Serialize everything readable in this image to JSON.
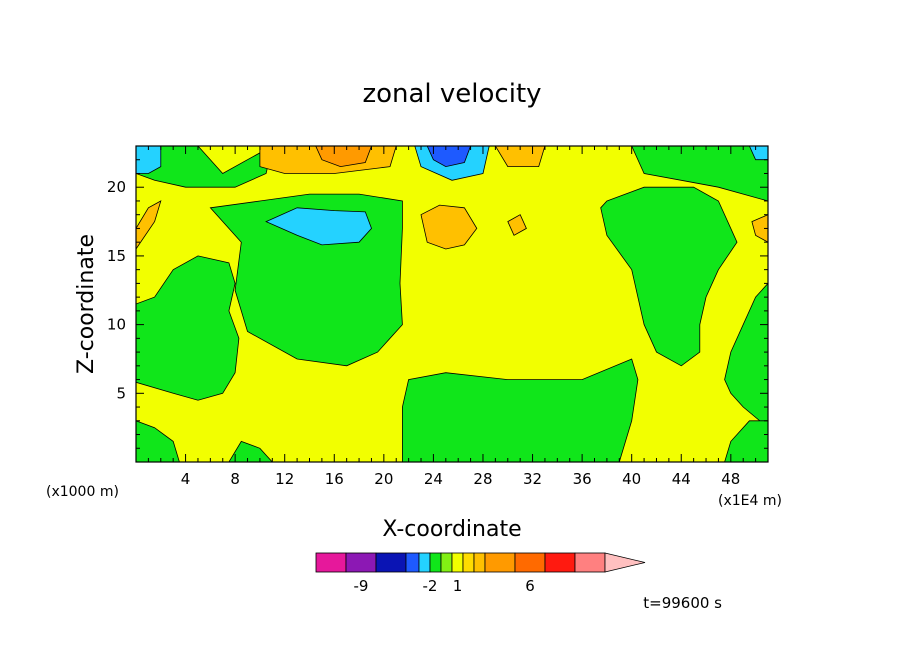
{
  "chart_data": {
    "type": "contour",
    "title": "zonal velocity",
    "xlabel": "X-coordinate",
    "ylabel": "Z-coordinate",
    "x_unit_left": "(x1000 m)",
    "x_unit_right": "(x1E4 m)",
    "xlim": [
      0,
      51
    ],
    "ylim": [
      0,
      23
    ],
    "xticks": [
      4,
      8,
      12,
      16,
      20,
      24,
      28,
      32,
      36,
      40,
      44,
      48
    ],
    "yticks": [
      5,
      10,
      15,
      20
    ],
    "time_label": "t=99600 s",
    "colorbar": {
      "colors": [
        "#e6189b",
        "#8c18b4",
        "#0a14b4",
        "#1e5aff",
        "#24d2ff",
        "#10e61a",
        "#82f014",
        "#f2ff00",
        "#ffdc00",
        "#ffc000",
        "#ff9a00",
        "#ff6a00",
        "#ff1a10",
        "#ff8080",
        "#ffc0c0"
      ],
      "tick_labels": [
        {
          "label": "-9",
          "index": 1.5
        },
        {
          "label": "-2",
          "index": 5
        },
        {
          "label": "1",
          "index": 7.5
        },
        {
          "label": "6",
          "index": 11.5
        }
      ]
    },
    "regions": [
      {
        "value": 0.5,
        "color": "#10e61a",
        "path": [
          [
            0,
            5.8
          ],
          [
            3,
            5
          ],
          [
            5,
            4.5
          ],
          [
            7,
            5
          ],
          [
            8,
            6.5
          ],
          [
            8.3,
            9
          ],
          [
            7.5,
            11
          ],
          [
            8,
            13
          ],
          [
            7.5,
            14.5
          ],
          [
            5,
            15
          ],
          [
            3,
            14
          ],
          [
            1.5,
            12
          ],
          [
            0,
            11.5
          ]
        ]
      },
      {
        "value": 0.5,
        "color": "#10e61a",
        "path": [
          [
            0,
            0
          ],
          [
            3.5,
            0
          ],
          [
            3,
            1.5
          ],
          [
            1.5,
            2.5
          ],
          [
            0,
            3
          ]
        ]
      },
      {
        "value": 0.5,
        "color": "#10e61a",
        "path": [
          [
            7.5,
            0
          ],
          [
            11,
            0
          ],
          [
            10,
            1
          ],
          [
            8.5,
            1.5
          ]
        ]
      },
      {
        "value": 0.5,
        "color": "#10e61a",
        "path": [
          [
            21.5,
            0
          ],
          [
            39,
            0
          ],
          [
            40,
            3
          ],
          [
            40.5,
            6
          ],
          [
            40,
            7.5
          ],
          [
            36,
            6
          ],
          [
            30,
            6
          ],
          [
            25,
            6.5
          ],
          [
            22,
            6
          ],
          [
            21.5,
            4
          ]
        ]
      },
      {
        "value": 0.5,
        "color": "#10e61a",
        "path": [
          [
            6,
            18.5
          ],
          [
            10,
            19
          ],
          [
            14,
            19.5
          ],
          [
            18,
            19.5
          ],
          [
            21.5,
            19
          ],
          [
            21.5,
            17
          ],
          [
            21.3,
            13
          ],
          [
            21.5,
            10
          ],
          [
            20.5,
            9
          ],
          [
            19.5,
            8
          ],
          [
            17,
            7
          ],
          [
            13,
            7.5
          ],
          [
            9,
            9.5
          ],
          [
            8,
            12.5
          ],
          [
            8.5,
            16
          ]
        ]
      },
      {
        "value": 0.5,
        "color": "#10e61a",
        "path": [
          [
            0,
            23
          ],
          [
            5,
            23
          ],
          [
            7,
            21
          ],
          [
            9,
            22
          ],
          [
            11,
            23
          ],
          [
            10.5,
            21
          ],
          [
            8,
            20
          ],
          [
            4,
            20
          ],
          [
            1.5,
            20.5
          ],
          [
            0,
            21
          ]
        ]
      },
      {
        "value": 0.5,
        "color": "#10e61a",
        "path": [
          [
            38,
            23
          ],
          [
            40,
            23
          ],
          [
            41,
            21
          ],
          [
            44,
            20.5
          ],
          [
            47,
            20
          ],
          [
            51,
            19
          ],
          [
            51,
            23
          ]
        ]
      },
      {
        "value": 0.5,
        "color": "#10e61a",
        "path": [
          [
            38,
            19
          ],
          [
            41,
            20
          ],
          [
            45,
            20
          ],
          [
            47,
            19
          ],
          [
            48,
            17
          ],
          [
            48.5,
            16
          ],
          [
            47,
            14
          ],
          [
            46,
            12
          ],
          [
            45.5,
            10
          ],
          [
            45.5,
            8
          ],
          [
            44,
            7
          ],
          [
            42,
            8
          ],
          [
            41,
            10
          ],
          [
            40,
            14
          ],
          [
            38,
            16.5
          ],
          [
            37.5,
            18.5
          ]
        ]
      },
      {
        "value": 0.5,
        "color": "#10e61a",
        "path": [
          [
            51,
            2.5
          ],
          [
            49,
            4
          ],
          [
            48,
            5
          ],
          [
            47.5,
            6
          ],
          [
            48,
            8
          ],
          [
            49,
            10
          ],
          [
            50,
            12
          ],
          [
            51,
            13
          ]
        ]
      },
      {
        "value": 0.5,
        "color": "#10e61a",
        "path": [
          [
            49.5,
            3
          ],
          [
            51,
            3
          ],
          [
            51,
            0
          ],
          [
            47.5,
            0
          ],
          [
            48,
            1.5
          ]
        ]
      },
      {
        "value": -1.5,
        "color": "#24d2ff",
        "path": [
          [
            10.5,
            17.5
          ],
          [
            13,
            18.5
          ],
          [
            16,
            18.3
          ],
          [
            18.5,
            18.2
          ],
          [
            19,
            17
          ],
          [
            18,
            16
          ],
          [
            15,
            15.8
          ],
          [
            13,
            16.5
          ]
        ]
      },
      {
        "value": -1.5,
        "color": "#24d2ff",
        "path": [
          [
            0,
            23
          ],
          [
            2,
            23
          ],
          [
            2,
            21.5
          ],
          [
            1,
            21
          ],
          [
            0,
            21
          ]
        ]
      },
      {
        "value": -1.5,
        "color": "#24d2ff",
        "path": [
          [
            49.5,
            23
          ],
          [
            51,
            23
          ],
          [
            51,
            22
          ],
          [
            50,
            22
          ]
        ]
      },
      {
        "value": -1.5,
        "color": "#24d2ff",
        "path": [
          [
            22.5,
            23
          ],
          [
            28.5,
            23
          ],
          [
            28,
            21
          ],
          [
            25.5,
            20.5
          ],
          [
            23,
            21.5
          ]
        ]
      },
      {
        "value": -3,
        "color": "#1e5aff",
        "path": [
          [
            23.5,
            23
          ],
          [
            27,
            23
          ],
          [
            26.5,
            21.8
          ],
          [
            25,
            21.5
          ],
          [
            24,
            22
          ]
        ]
      },
      {
        "value": 2.5,
        "color": "#ffc000",
        "path": [
          [
            0,
            17
          ],
          [
            1,
            18.5
          ],
          [
            2,
            19
          ],
          [
            1.5,
            17.5
          ],
          [
            0,
            15.5
          ]
        ]
      },
      {
        "value": 2.5,
        "color": "#ffc000",
        "path": [
          [
            10,
            23
          ],
          [
            21,
            23
          ],
          [
            20.5,
            21.5
          ],
          [
            16,
            21
          ],
          [
            12,
            21
          ],
          [
            10,
            21.5
          ]
        ]
      },
      {
        "value": 2.5,
        "color": "#ffc000",
        "path": [
          [
            23,
            18
          ],
          [
            24.5,
            18.7
          ],
          [
            26.5,
            18.5
          ],
          [
            27.5,
            17
          ],
          [
            26.5,
            15.8
          ],
          [
            25,
            15.5
          ],
          [
            23.5,
            16
          ]
        ]
      },
      {
        "value": 2.5,
        "color": "#ffc000",
        "path": [
          [
            30,
            17.5
          ],
          [
            31,
            18
          ],
          [
            31.5,
            17
          ],
          [
            30.5,
            16.5
          ]
        ]
      },
      {
        "value": 2.5,
        "color": "#ffc000",
        "path": [
          [
            29,
            23
          ],
          [
            33,
            23
          ],
          [
            32.5,
            21.5
          ],
          [
            30,
            21.5
          ]
        ]
      },
      {
        "value": 2.5,
        "color": "#ffc000",
        "path": [
          [
            51,
            16
          ],
          [
            50,
            16.5
          ],
          [
            49.7,
            17.5
          ],
          [
            51,
            18
          ]
        ]
      },
      {
        "value": 3.5,
        "color": "#ff9a00",
        "path": [
          [
            14.5,
            23
          ],
          [
            19,
            23
          ],
          [
            18.5,
            21.8
          ],
          [
            16.5,
            21.5
          ],
          [
            15,
            22
          ]
        ]
      }
    ]
  }
}
